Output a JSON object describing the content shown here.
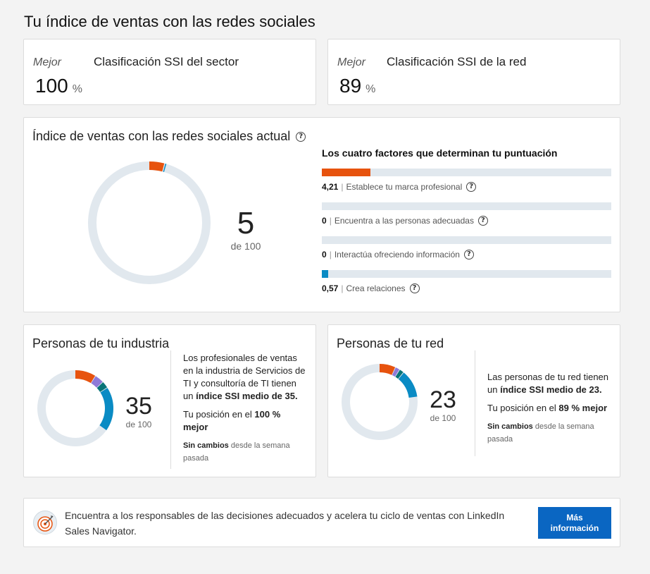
{
  "page_title": "Tu índice de ventas con las redes sociales",
  "rank_cards": [
    {
      "mejor": "Mejor",
      "label": "Clasificación SSI del sector",
      "value": "100",
      "unit": "%"
    },
    {
      "mejor": "Mejor",
      "label": "Clasificación SSI de la red",
      "value": "89",
      "unit": "%"
    }
  ],
  "ssi": {
    "title": "Índice de ventas con las redes sociales actual",
    "help": "?",
    "score": "5",
    "of": "de 100",
    "score_value": 5,
    "segments": [
      {
        "value": 4.21,
        "color": "#e7530e"
      },
      {
        "value": 0.57,
        "color": "#0a8bc4"
      }
    ],
    "factors_title": "Los cuatro factores que determinan tu puntuación",
    "factors": [
      {
        "value": "4,21",
        "sep": "|",
        "label": "Establece tu marca profesional",
        "fraction": 0.168,
        "color": "#e7530e"
      },
      {
        "value": "0",
        "sep": "|",
        "label": "Encuentra a las personas adecuadas",
        "fraction": 0,
        "color": "#e7530e"
      },
      {
        "value": "0",
        "sep": "|",
        "label": "Interactúa ofreciendo información",
        "fraction": 0,
        "color": "#e7530e"
      },
      {
        "value": "0,57",
        "sep": "|",
        "label": "Crea relaciones",
        "fraction": 0.023,
        "color": "#0a8bc4"
      }
    ]
  },
  "industry": {
    "title": "Personas de tu industria",
    "score": "35",
    "of": "de 100",
    "segments": [
      {
        "value": 9,
        "color": "#e7530e"
      },
      {
        "value": 4,
        "color": "#8e7ad8"
      },
      {
        "value": 3,
        "color": "#087478"
      },
      {
        "value": 19,
        "color": "#0a8bc4"
      }
    ],
    "text1_a": "Los profesionales de ventas en la industria de Servicios de TI y consultoría de TI tienen un ",
    "text1_b": "índice SSI medio de 35.",
    "text2_a": "Tu posición en el ",
    "text2_b": "100 % mejor",
    "note_b": "Sin cambios",
    "note_rest": " desde la semana pasada"
  },
  "network": {
    "title": "Personas de tu red",
    "score": "23",
    "of": "de 100",
    "segments": [
      {
        "value": 7,
        "color": "#e7530e"
      },
      {
        "value": 2,
        "color": "#8e7ad8"
      },
      {
        "value": 2,
        "color": "#087478"
      },
      {
        "value": 12,
        "color": "#0a8bc4"
      }
    ],
    "text1_a": "Las personas de tu red tienen un ",
    "text1_b": "índice SSI medio de 23.",
    "text2_a": "Tu posición en el ",
    "text2_b": "89 % mejor",
    "note_b": "Sin cambios",
    "note_rest": " desde la semana pasada"
  },
  "promo": {
    "text": "Encuentra a los responsables de las decisiones adecuados y acelera tu ciclo de ventas con LinkedIn Sales Navigator.",
    "button": "Más información"
  },
  "colors": {
    "track": "#e1e8ee",
    "accent": "#0a66c2"
  }
}
